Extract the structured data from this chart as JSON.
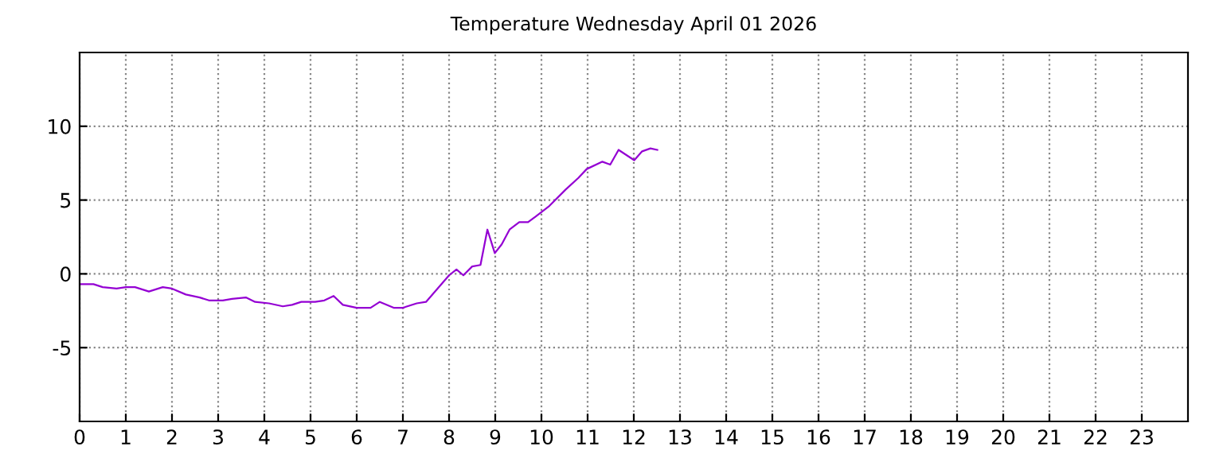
{
  "chart_data": {
    "type": "line",
    "title": "Temperature Wednesday April 01 2026",
    "x": [
      0,
      0.3,
      0.5,
      0.8,
      1.0,
      1.2,
      1.5,
      1.8,
      2.0,
      2.3,
      2.6,
      2.8,
      3.1,
      3.3,
      3.6,
      3.8,
      4.1,
      4.4,
      4.6,
      4.8,
      5.1,
      5.3,
      5.5,
      5.7,
      6.0,
      6.3,
      6.5,
      6.8,
      7.0,
      7.3,
      7.5,
      8.0,
      8.16,
      8.31,
      8.5,
      8.68,
      8.83,
      8.99,
      9.14,
      9.31,
      9.52,
      9.71,
      9.88,
      10.17,
      10.52,
      10.8,
      10.98,
      11.32,
      11.49,
      11.67,
      12.01,
      12.18,
      12.36,
      12.51
    ],
    "series": [
      {
        "color": "#9400d3",
        "values": [
          -0.7,
          -0.7,
          -0.9,
          -1.0,
          -0.9,
          -0.9,
          -1.2,
          -0.9,
          -1.0,
          -1.4,
          -1.6,
          -1.8,
          -1.8,
          -1.7,
          -1.6,
          -1.9,
          -2.0,
          -2.2,
          -2.1,
          -1.9,
          -1.9,
          -1.8,
          -1.5,
          -2.1,
          -2.3,
          -2.3,
          -1.9,
          -2.3,
          -2.3,
          -2.0,
          -1.9,
          -0.1,
          0.3,
          -0.1,
          0.5,
          0.6,
          3.0,
          1.4,
          2.0,
          3.0,
          3.5,
          3.5,
          3.9,
          4.6,
          5.7,
          6.5,
          7.1,
          7.6,
          7.4,
          8.4,
          7.7,
          8.3,
          8.5,
          8.4
        ]
      }
    ],
    "xlim": [
      0,
      24
    ],
    "xticks": [
      0,
      1,
      2,
      3,
      4,
      5,
      6,
      7,
      8,
      9,
      10,
      11,
      12,
      13,
      14,
      15,
      16,
      17,
      18,
      19,
      20,
      21,
      22,
      23
    ],
    "ylim": [
      -10,
      15
    ],
    "yticks": [
      -5,
      0,
      5,
      10
    ],
    "grid": true,
    "line_style": "solid",
    "marker": "none"
  }
}
